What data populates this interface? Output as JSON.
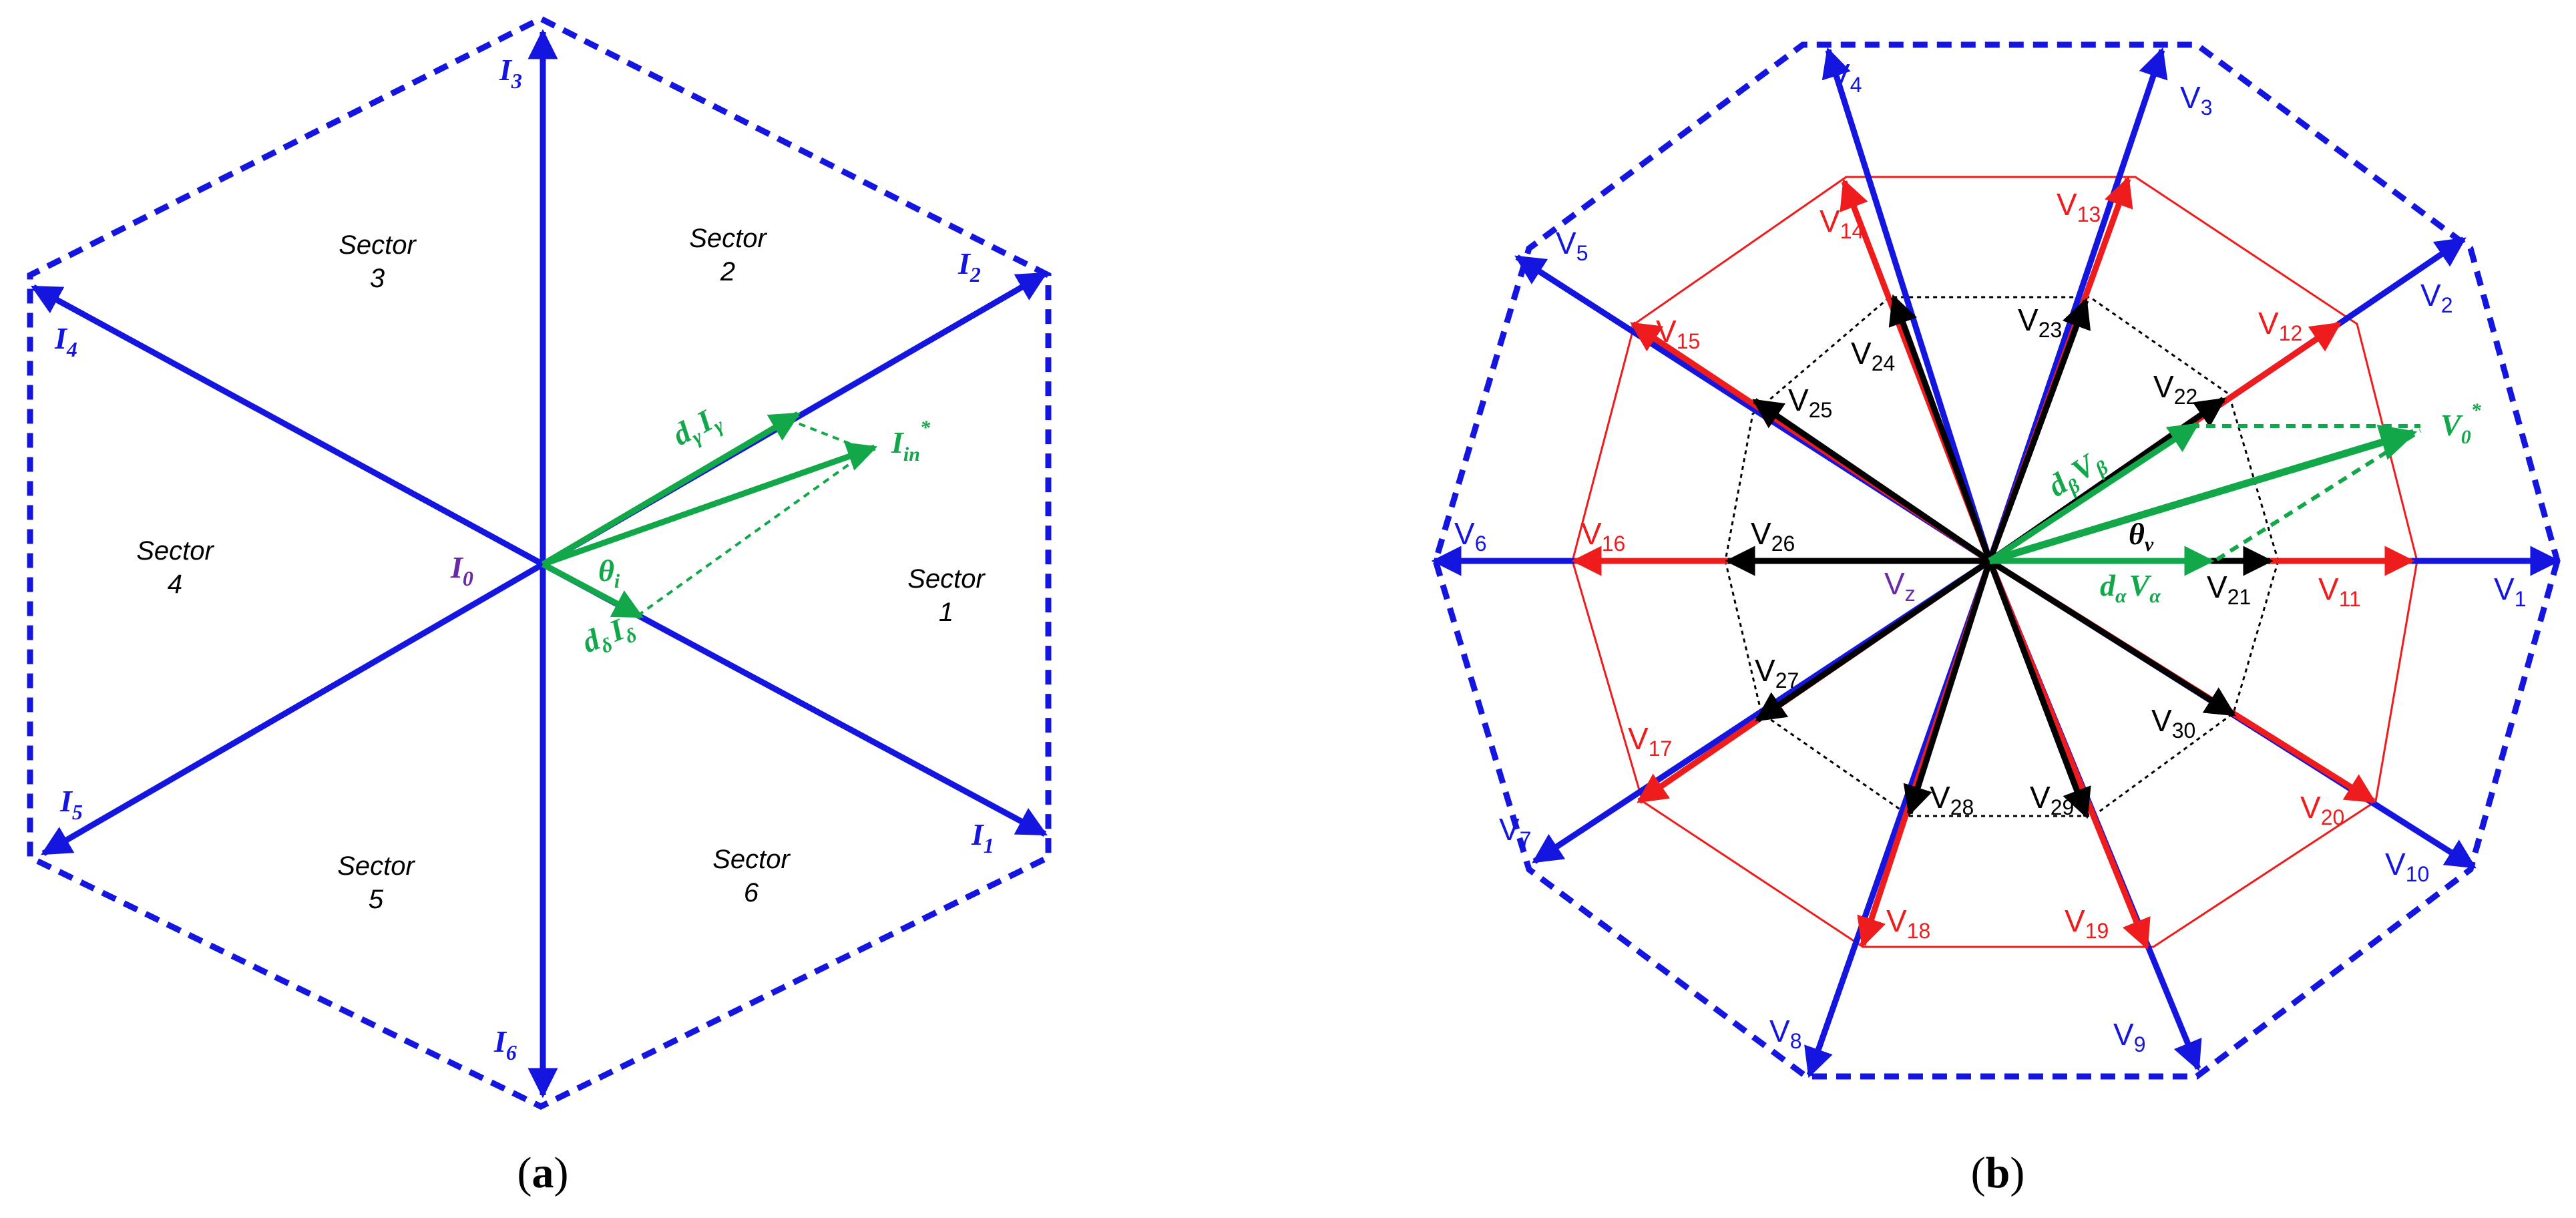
{
  "colors": {
    "blue": "#1515e0",
    "red": "#ee1c1c",
    "black": "#000000",
    "green": "#12a84a",
    "purple": "#6a2aa6"
  },
  "panel_a": {
    "caption_label": "a",
    "origin_label": "I",
    "origin_sub": "0",
    "vectors": [
      {
        "name": "I",
        "sub": "1"
      },
      {
        "name": "I",
        "sub": "2"
      },
      {
        "name": "I",
        "sub": "3"
      },
      {
        "name": "I",
        "sub": "4"
      },
      {
        "name": "I",
        "sub": "5"
      },
      {
        "name": "I",
        "sub": "6"
      }
    ],
    "sectors": [
      {
        "word": "Sector",
        "num": "1"
      },
      {
        "word": "Sector",
        "num": "2"
      },
      {
        "word": "Sector",
        "num": "3"
      },
      {
        "word": "Sector",
        "num": "4"
      },
      {
        "word": "Sector",
        "num": "5"
      },
      {
        "word": "Sector",
        "num": "6"
      }
    ],
    "d_gamma": {
      "d": "d",
      "d_sub": "γ",
      "i": "I",
      "i_sub": "γ"
    },
    "d_delta": {
      "d": "d",
      "d_sub": "δ",
      "i": "I",
      "i_sub": "δ"
    },
    "i_ref": {
      "i": "I",
      "sub": "in",
      "sup": "*"
    },
    "theta": {
      "t": "θ",
      "sub": "i"
    }
  },
  "panel_b": {
    "caption_label": "b",
    "outer_vectors": [
      {
        "name": "V",
        "sub": "1"
      },
      {
        "name": "V",
        "sub": "2"
      },
      {
        "name": "V",
        "sub": "3"
      },
      {
        "name": "V",
        "sub": "4"
      },
      {
        "name": "V",
        "sub": "5"
      },
      {
        "name": "V",
        "sub": "6"
      },
      {
        "name": "V",
        "sub": "7"
      },
      {
        "name": "V",
        "sub": "8"
      },
      {
        "name": "V",
        "sub": "9"
      },
      {
        "name": "V",
        "sub": "10"
      }
    ],
    "middle_vectors": [
      {
        "name": "V",
        "sub": "11"
      },
      {
        "name": "V",
        "sub": "12"
      },
      {
        "name": "V",
        "sub": "13"
      },
      {
        "name": "V",
        "sub": "14"
      },
      {
        "name": "V",
        "sub": "15"
      },
      {
        "name": "V",
        "sub": "16"
      },
      {
        "name": "V",
        "sub": "17"
      },
      {
        "name": "V",
        "sub": "18"
      },
      {
        "name": "V",
        "sub": "19"
      },
      {
        "name": "V",
        "sub": "20"
      }
    ],
    "inner_vectors": [
      {
        "name": "V",
        "sub": "21"
      },
      {
        "name": "V",
        "sub": "22"
      },
      {
        "name": "V",
        "sub": "23"
      },
      {
        "name": "V",
        "sub": "24"
      },
      {
        "name": "V",
        "sub": "25"
      },
      {
        "name": "V",
        "sub": "26"
      },
      {
        "name": "V",
        "sub": "27"
      },
      {
        "name": "V",
        "sub": "28"
      },
      {
        "name": "V",
        "sub": "29"
      },
      {
        "name": "V",
        "sub": "30"
      }
    ],
    "zero": {
      "name": "V",
      "sub": "z"
    },
    "d_alpha": {
      "d": "d",
      "d_sub": "α",
      "v": "V",
      "v_sub": "α"
    },
    "d_beta": {
      "d": "d",
      "d_sub": "β",
      "v": "V",
      "v_sub": "β"
    },
    "v_ref": {
      "v": "V",
      "sub": "0",
      "sup": "*"
    },
    "theta": {
      "t": "θ",
      "sub": "v"
    }
  }
}
